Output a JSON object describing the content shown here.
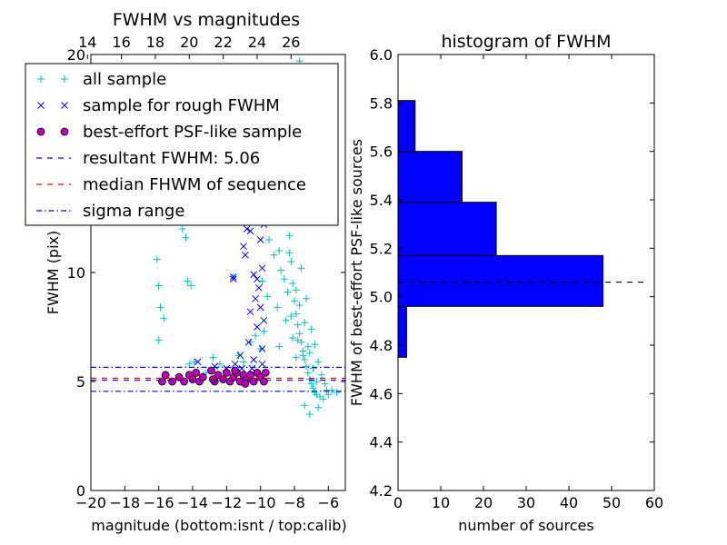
{
  "chart_data": [
    {
      "type": "scatter",
      "title": "FWHM vs magnitudes",
      "xlabel": "magnitude (bottom:isnt / top:calib)",
      "ylabel": "FWHM (pix)",
      "xlim": [
        -20,
        -5
      ],
      "ylim": [
        0,
        20
      ],
      "x_ticks": [
        -20,
        -18,
        -16,
        -14,
        -12,
        -10,
        -8,
        -6
      ],
      "x_tick_labels": [
        "−20",
        "−18",
        "−16",
        "−14",
        "−12",
        "−10",
        "−8",
        "−6"
      ],
      "y_ticks": [
        0,
        5,
        10,
        20
      ],
      "y_tick_labels": [
        "0",
        "5",
        "10",
        "20"
      ],
      "top_axis_ticks": [
        14,
        16,
        18,
        20,
        22,
        24,
        26
      ],
      "top_axis_tick_labels": [
        "14",
        "16",
        "18",
        "20",
        "22",
        "24",
        "26"
      ],
      "top_axis_offset": 34.2,
      "legend_position": "top-left",
      "legend": [
        {
          "label": "all sample",
          "marker": "+",
          "color": "#00bfbf"
        },
        {
          "label": "sample for rough FWHM",
          "marker": "x",
          "color": "#0000ff"
        },
        {
          "label": "best-effort PSF-like sample",
          "marker": "circle",
          "color": "#bf00bf"
        },
        {
          "label": "resultant FWHM: 5.06",
          "marker": "dashed",
          "color": "#0000ff"
        },
        {
          "label": "median FHWM of sequence",
          "marker": "dashed",
          "color": "#ff0000"
        },
        {
          "label": "sigma range",
          "marker": "dashdot",
          "color": "#0000ff"
        }
      ],
      "hlines": [
        {
          "name": "resultant FWHM",
          "y": 5.06,
          "style": "dashed",
          "color": "#0000ff"
        },
        {
          "name": "median FHWM of sequence",
          "y": 5.15,
          "style": "dashed",
          "color": "#ff0000"
        },
        {
          "name": "sigma range upper",
          "y": 5.65,
          "style": "dashdot",
          "color": "#0000ff"
        },
        {
          "name": "sigma range lower",
          "y": 4.55,
          "style": "dashdot",
          "color": "#0000ff"
        }
      ],
      "series": [
        {
          "name": "all sample",
          "marker": "+",
          "color": "#00bfbf",
          "points": [
            [
              -16.1,
              10.6
            ],
            [
              -16.0,
              9.4
            ],
            [
              -15.9,
              8.4
            ],
            [
              -15.7,
              7.9
            ],
            [
              -16.0,
              6.9
            ],
            [
              -14.6,
              12.0
            ],
            [
              -14.4,
              11.6
            ],
            [
              -14.3,
              9.6
            ],
            [
              -14.1,
              9.4
            ],
            [
              -14.2,
              5.8
            ],
            [
              -13.9,
              5.9
            ],
            [
              -13.2,
              5.4
            ],
            [
              -12.8,
              6.1
            ],
            [
              -12.4,
              5.8
            ],
            [
              -12.1,
              5.5
            ],
            [
              -11.6,
              9.8
            ],
            [
              -11.3,
              6.2
            ],
            [
              -11.0,
              5.9
            ],
            [
              -10.6,
              6.8
            ],
            [
              -10.3,
              7.1
            ],
            [
              -10.0,
              6.5
            ],
            [
              -9.8,
              7.3
            ],
            [
              -9.6,
              14.9
            ],
            [
              -9.4,
              13.0
            ],
            [
              -9.2,
              10.8
            ],
            [
              -9.0,
              8.4
            ],
            [
              -8.9,
              6.6
            ],
            [
              -8.8,
              18.5
            ],
            [
              -8.6,
              17.4
            ],
            [
              -8.5,
              15.8
            ],
            [
              -8.4,
              13.2
            ],
            [
              -8.3,
              11.7
            ],
            [
              -8.2,
              10.5
            ],
            [
              -8.1,
              9.5
            ],
            [
              -8.0,
              8.7
            ],
            [
              -7.9,
              8.1
            ],
            [
              -7.8,
              7.6
            ],
            [
              -7.7,
              7.2
            ],
            [
              -7.6,
              6.8
            ],
            [
              -7.5,
              6.4
            ],
            [
              -7.4,
              6.0
            ],
            [
              -7.3,
              5.7
            ],
            [
              -7.2,
              5.4
            ],
            [
              -7.1,
              5.1
            ],
            [
              -7.0,
              4.9
            ],
            [
              -6.9,
              4.7
            ],
            [
              -6.8,
              4.5
            ],
            [
              -6.7,
              4.4
            ],
            [
              -6.5,
              4.3
            ],
            [
              -6.3,
              4.2
            ],
            [
              -6.0,
              4.4
            ],
            [
              -5.8,
              4.6
            ],
            [
              -5.5,
              4.5
            ],
            [
              -7.1,
              3.5
            ],
            [
              -7.4,
              3.9
            ],
            [
              -6.6,
              3.8
            ],
            [
              -7.9,
              6.1
            ],
            [
              -8.1,
              7.0
            ],
            [
              -8.6,
              9.7
            ],
            [
              -8.7,
              12.4
            ],
            [
              -8.9,
              13.6
            ],
            [
              -9.1,
              15.9
            ],
            [
              -9.3,
              16.8
            ],
            [
              -8.0,
              19.2
            ],
            [
              -7.7,
              19.7
            ],
            [
              -7.5,
              18.0
            ],
            [
              -8.3,
              14.6
            ],
            [
              -7.6,
              10.2
            ],
            [
              -7.3,
              8.8
            ],
            [
              -7.0,
              7.4
            ],
            [
              -6.8,
              6.7
            ],
            [
              -6.6,
              5.9
            ],
            [
              -6.4,
              5.3
            ],
            [
              -6.2,
              4.9
            ],
            [
              -6.1,
              4.6
            ],
            [
              -8.8,
              10.1
            ],
            [
              -8.4,
              9.1
            ],
            [
              -8.2,
              8.0
            ],
            [
              -7.8,
              6.9
            ],
            [
              -7.5,
              6.2
            ],
            [
              -7.2,
              6.6
            ],
            [
              -6.9,
              5.6
            ],
            [
              -6.7,
              5.0
            ],
            [
              -8.5,
              7.8
            ],
            [
              -9.5,
              11.5
            ],
            [
              -9.7,
              12.6
            ],
            [
              -9.9,
              9.6
            ],
            [
              -9.6,
              8.9
            ],
            [
              -8.9,
              11.0
            ],
            [
              -8.6,
              12.8
            ],
            [
              -8.3,
              10.9
            ],
            [
              -7.9,
              9.2
            ],
            [
              -7.7,
              8.5
            ],
            [
              -7.4,
              7.7
            ],
            [
              -7.1,
              6.3
            ]
          ]
        },
        {
          "name": "sample for rough FWHM",
          "marker": "x",
          "color": "#0000ff",
          "points": [
            [
              -11.6,
              9.8
            ],
            [
              -11.6,
              9.7
            ],
            [
              -11.0,
              11.2
            ],
            [
              -10.8,
              12.0
            ],
            [
              -10.6,
              11.9
            ],
            [
              -10.9,
              10.8
            ],
            [
              -10.4,
              9.9
            ],
            [
              -10.1,
              9.3
            ],
            [
              -10.2,
              9.7
            ],
            [
              -9.9,
              10.2
            ],
            [
              -10.0,
              11.5
            ],
            [
              -9.8,
              12.2
            ],
            [
              -10.3,
              8.8
            ],
            [
              -10.6,
              8.2
            ],
            [
              -10.2,
              7.5
            ],
            [
              -10.0,
              8.4
            ],
            [
              -9.8,
              7.8
            ],
            [
              -10.7,
              6.8
            ],
            [
              -10.4,
              6.0
            ],
            [
              -9.9,
              6.5
            ],
            [
              -11.5,
              5.8
            ],
            [
              -11.2,
              6.2
            ],
            [
              -13.7,
              5.9
            ],
            [
              -12.7,
              5.7
            ],
            [
              -12.0,
              5.6
            ],
            [
              -11.1,
              5.6
            ],
            [
              -10.5,
              5.6
            ],
            [
              -9.9,
              5.8
            ]
          ]
        },
        {
          "name": "best-effort PSF-like sample",
          "marker": "circle",
          "color": "#bf00bf",
          "points": [
            [
              -15.8,
              5.0
            ],
            [
              -15.6,
              5.3
            ],
            [
              -15.2,
              5.0
            ],
            [
              -14.8,
              5.2
            ],
            [
              -14.5,
              5.0
            ],
            [
              -14.2,
              5.3
            ],
            [
              -14.0,
              5.1
            ],
            [
              -13.8,
              5.4
            ],
            [
              -13.6,
              5.0
            ],
            [
              -13.4,
              5.2
            ],
            [
              -12.9,
              5.5
            ],
            [
              -12.7,
              5.0
            ],
            [
              -12.5,
              5.3
            ],
            [
              -12.2,
              5.1
            ],
            [
              -12.0,
              5.4
            ],
            [
              -11.8,
              5.0
            ],
            [
              -11.6,
              5.2
            ],
            [
              -11.4,
              5.4
            ],
            [
              -11.2,
              5.0
            ],
            [
              -11.0,
              5.3
            ],
            [
              -10.8,
              5.1
            ],
            [
              -10.6,
              5.3
            ],
            [
              -10.4,
              5.0
            ],
            [
              -10.2,
              5.4
            ],
            [
              -10.0,
              5.2
            ],
            [
              -9.8,
              5.0
            ],
            [
              -9.7,
              5.4
            ],
            [
              -12.8,
              5.1
            ],
            [
              -11.5,
              5.5
            ],
            [
              -10.9,
              4.9
            ]
          ]
        }
      ]
    },
    {
      "type": "bar",
      "orientation": "horizontal",
      "title": "histogram of FWHM",
      "xlabel": "number of sources",
      "ylabel": "FWHM of best-effort PSF-like sources",
      "xlim": [
        0,
        60
      ],
      "ylim": [
        4.2,
        6.0
      ],
      "x_ticks": [
        0,
        10,
        20,
        30,
        40,
        50,
        60
      ],
      "x_tick_labels": [
        "0",
        "10",
        "20",
        "30",
        "40",
        "50",
        "60"
      ],
      "y_ticks": [
        4.2,
        4.4,
        4.6,
        4.8,
        5.0,
        5.2,
        5.4,
        5.6,
        5.8,
        6.0
      ],
      "y_tick_labels": [
        "4.2",
        "4.4",
        "4.6",
        "4.8",
        "5.0",
        "5.2",
        "5.4",
        "5.6",
        "5.8",
        "6.0"
      ],
      "bar_color": "#0000ff",
      "bins": [
        {
          "from": 4.75,
          "to": 4.96,
          "count": 2
        },
        {
          "from": 4.96,
          "to": 5.17,
          "count": 48
        },
        {
          "from": 5.17,
          "to": 5.39,
          "count": 23
        },
        {
          "from": 5.39,
          "to": 5.6,
          "count": 15
        },
        {
          "from": 5.6,
          "to": 5.81,
          "count": 4
        }
      ],
      "hline": {
        "y": 5.06,
        "style": "dashed",
        "color": "#000000"
      }
    }
  ]
}
